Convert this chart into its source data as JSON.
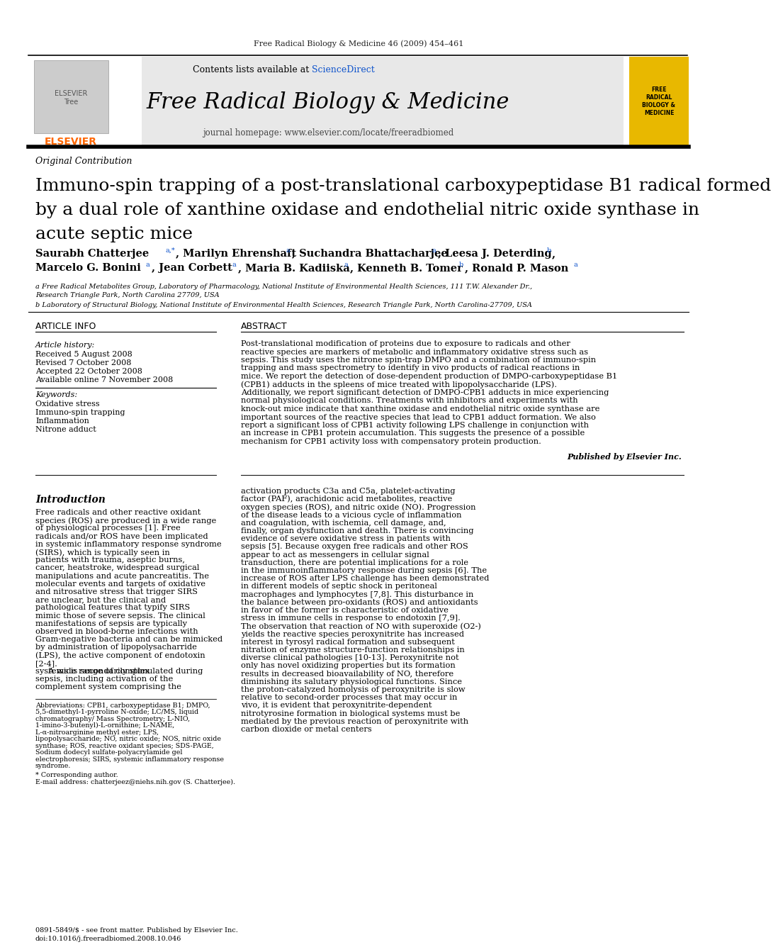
{
  "journal_ref": "Free Radical Biology & Medicine 46 (2009) 454–461",
  "journal_name": "Free Radical Biology & Medicine",
  "journal_homepage": "journal homepage: www.elsevier.com/locate/freeradbiomed",
  "contents_line": "Contents lists available at ScienceDirect",
  "article_type": "Original Contribution",
  "title_line1": "Immuno-spin trapping of a post-translational carboxypeptidase B1 radical formed",
  "title_line2": "by a dual role of xanthine oxidase and endothelial nitric oxide synthase in",
  "title_line3": "acute septic mice",
  "affil_a": "a Free Radical Metabolites Group, Laboratory of Pharmacology, National Institute of Environmental Health Sciences, 111 T.W. Alexander Dr.,",
  "affil_a2": "Research Triangle Park, North Carolina 27709, USA",
  "affil_b": "b Laboratory of Structural Biology, National Institute of Environmental Health Sciences, Research Triangle Park, North Carolina-27709, USA",
  "article_info_header": "ARTICLE INFO",
  "abstract_header": "ABSTRACT",
  "article_history_label": "Article history:",
  "received": "Received 5 August 2008",
  "revised": "Revised 7 October 2008",
  "accepted": "Accepted 22 October 2008",
  "available": "Available online 7 November 2008",
  "keywords_label": "Keywords:",
  "keywords": [
    "Oxidative stress",
    "Immuno-spin trapping",
    "Inflammation",
    "Nitrone adduct"
  ],
  "abstract_text": "Post-translational modification of proteins due to exposure to radicals and other reactive species are markers of metabolic and inflammatory oxidative stress such as sepsis. This study uses the nitrone spin-trap DMPO and a combination of immuno-spin trapping and mass spectrometry to identify in vivo products of radical reactions in mice. We report the detection of dose-dependent production of DMPO-carboxypeptidase B1 (CPB1) adducts in the spleens of mice treated with lipopolysaccharide (LPS). Additionally, we report significant detection of DMPO-CPB1 adducts in mice experiencing normal physiological conditions. Treatments with inhibitors and experiments with knock-out mice indicate that xanthine oxidase and endothelial nitric oxide synthase are important sources of the reactive species that lead to CPB1 adduct formation. We also report a significant loss of CPB1 activity following LPS challenge in conjunction with an increase in CPB1 protein accumulation. This suggests the presence of a possible mechanism for CPB1 activity loss with compensatory protein production.",
  "published_by": "Published by Elsevier Inc.",
  "intro_header": "Introduction",
  "intro_col1": "     Free radicals and other reactive oxidant species (ROS) are produced in a wide range of physiological processes [1]. Free radicals and/or ROS have been implicated in systemic inflammatory response syndrome (SIRS), which is typically seen in patients with trauma, aseptic burns, cancer, heatstroke, widespread surgical manipulations and acute pancreatitis. The molecular events and targets of oxidative and nitrosative stress that trigger SIRS are unclear, but the clinical and pathological features that typify SIRS mimic those of severe sepsis. The clinical manifestations of sepsis are typically observed in blood-borne infections with Gram-negative bacteria and can be mimicked by administration of lipopolysacharride (LPS), the active component of endotoxin [2-4].\n     A wide range of complex systems is secondarily stimulated during sepsis, including activation of the complement system comprising the",
  "intro_col2": "activation products C3a and C5a, platelet-activating factor (PAF), arachidonic acid metabolites, reactive oxygen species (ROS), and nitric oxide (NO). Progression of the disease leads to a vicious cycle of inflammation and coagulation, with ischemia, cell damage, and, finally, organ dysfunction and death. There is convincing evidence of severe oxidative stress in patients with sepsis [5]. Because oxygen free radicals and other ROS appear to act as messengers in cellular signal transduction, there are potential implications for a role in the immunoinflammatory response during sepsis [6]. The increase of ROS after LPS challenge has been demonstrated in different models of septic shock in peritoneal macrophages and lymphocytes [7,8]. This disturbance in the balance between pro-oxidants (ROS) and antioxidants in favor of the former is characteristic of oxidative stress in immune cells in response to endotoxin [7,9]. The observation that reaction of NO with superoxide (O2-) yields the reactive species peroxynitrite has increased interest in tyrosyl radical formation and subsequent nitration of enzyme structure-function relationships in diverse clinical pathologies [10-13]. Peroxynitrite not only has novel oxidizing properties but its formation results in decreased bioavailability of NO, therefore diminishing its salutary physiological functions. Since the proton-catalyzed homolysis of peroxynitrite is slow relative to second-order processes that may occur in vivo, it is evident that peroxynitrite-dependent nitrotyrosine formation in biological systems must be mediated by the previous reaction of peroxynitrite with carbon dioxide or metal centers",
  "footnote_abbrev": "Abbreviations: CPB1, carboxypeptidase B1; DMPO, 5,5-dimethyl-1-pyrroline N-oxide; LC/MS, liquid chromatography/ Mass Spectrometry; L-NIO, 1-imino-3-butenyl)-L-ornithine; L-NAME, L-α-nitroarginine methyl ester; LPS, lipopolysaccharide; NO, nitric oxide; NOS, nitric oxide synthase; ROS, reactive oxidant species; SDS-PAGE, Sodium dodecyl sulfate-polyacrylamide gel electrophoresis; SIRS, systemic inflammatory response syndrome.",
  "footnote_corr": "* Corresponding author.",
  "footnote_email": "E-mail address: chatterjeez@niehs.nih.gov (S. Chatterjee).",
  "footer1": "0891-5849/$ - see front matter. Published by Elsevier Inc.",
  "footer2": "doi:10.1016/j.freeradbiomed.2008.10.046",
  "bg_color": "#ffffff",
  "header_bg": "#e8e8e8",
  "yellow_bg": "#e8b800",
  "blue_link": "#1155cc",
  "black": "#000000",
  "dark_gray": "#222222"
}
